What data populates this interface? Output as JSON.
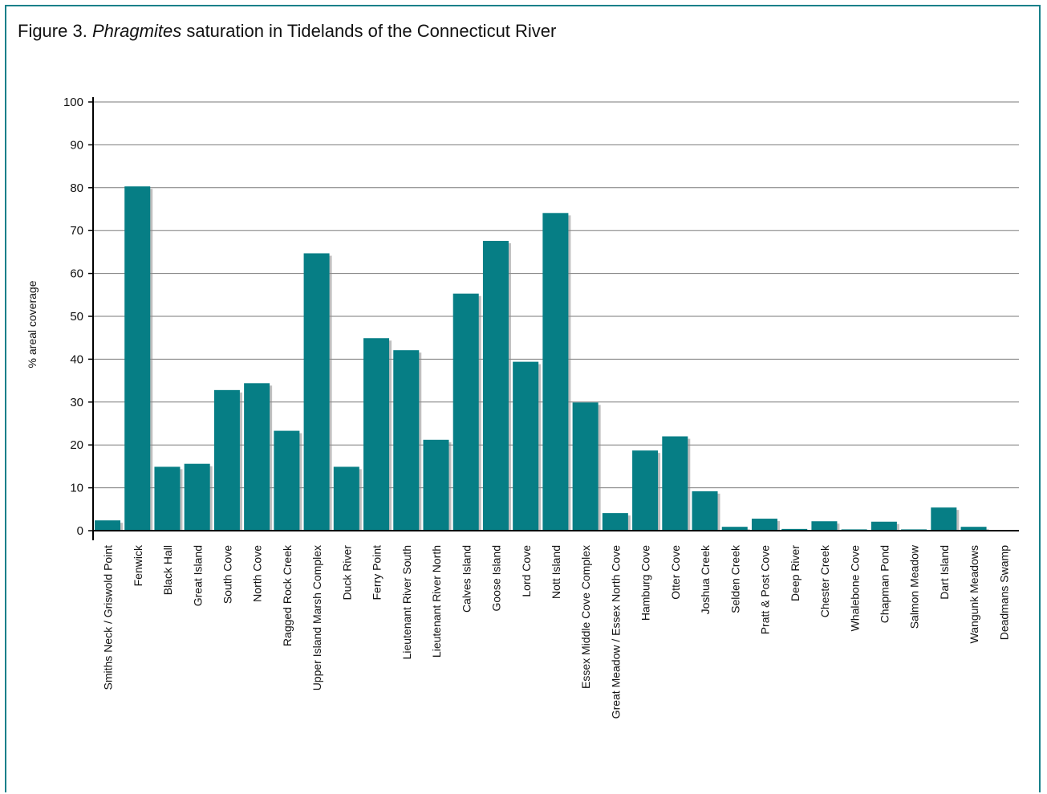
{
  "figure": {
    "title_prefix": "Figure 3. ",
    "title_italic": "Phragmites",
    "title_suffix": " saturation in Tidelands of the Connecticut River"
  },
  "colors": {
    "frame": "#17808a",
    "bar": "#067e85",
    "shadow": "#8a8a8a",
    "grid": "#7a7a7a"
  },
  "chart_data": {
    "type": "bar",
    "title": "Figure 3. Phragmites saturation in Tidelands of the Connecticut River",
    "xlabel": "",
    "ylabel": "% areal coverage",
    "ylim": [
      0,
      100
    ],
    "yticks": [
      0,
      10,
      20,
      30,
      40,
      50,
      60,
      70,
      80,
      90,
      100
    ],
    "grid": true,
    "categories": [
      "Smiths Neck / Griswold Point",
      "Fenwick",
      "Black Hall",
      "Great Island",
      "South Cove",
      "North Cove",
      "Ragged Rock Creek",
      "Upper Island Marsh Complex",
      "Duck River",
      "Ferry Point",
      "Lieutenant River South",
      "Lieutenant River North",
      "Calves Island",
      "Goose Island",
      "Lord Cove",
      "Nott Island",
      "Essex Middle Cove Complex",
      "Great Meadow / Essex North Cove",
      "Hamburg Cove",
      "Otter Cove",
      "Joshua Creek",
      "Selden Creek",
      "Pratt & Post Cove",
      "Deep River",
      "Chester Creek",
      "Whalebone Cove",
      "Chapman Pond",
      "Salmon Meadow",
      "Dart Island",
      "Wangunk Meadows",
      "Deadmans Swamp"
    ],
    "values": [
      2.4,
      80.3,
      14.9,
      15.6,
      32.8,
      34.4,
      23.3,
      64.7,
      14.9,
      44.9,
      42.1,
      21.2,
      55.3,
      67.6,
      39.4,
      74.1,
      29.9,
      4.1,
      18.7,
      22.0,
      9.2,
      0.9,
      2.8,
      0.4,
      2.2,
      0.3,
      2.1,
      0.3,
      5.4,
      0.9,
      0
    ]
  }
}
